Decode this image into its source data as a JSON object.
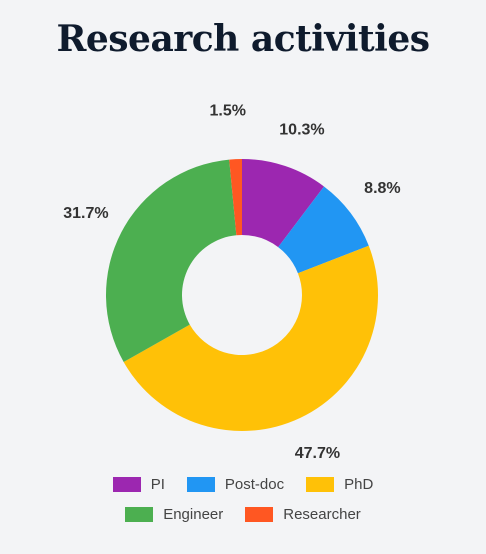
{
  "chart_data": {
    "type": "pie",
    "title": "Research activities",
    "categories": [
      "PI",
      "Post-doc",
      "PhD",
      "Engineer",
      "Researcher"
    ],
    "values": [
      10.3,
      8.8,
      47.7,
      31.7,
      1.5
    ],
    "value_labels": [
      "10.3%",
      "8.8%",
      "47.7%",
      "31.7%",
      "1.5%"
    ],
    "colors": [
      "#9c27b0",
      "#2196f3",
      "#ffc107",
      "#4caf50",
      "#ff5722"
    ],
    "donut": true,
    "legend_position": "bottom"
  }
}
